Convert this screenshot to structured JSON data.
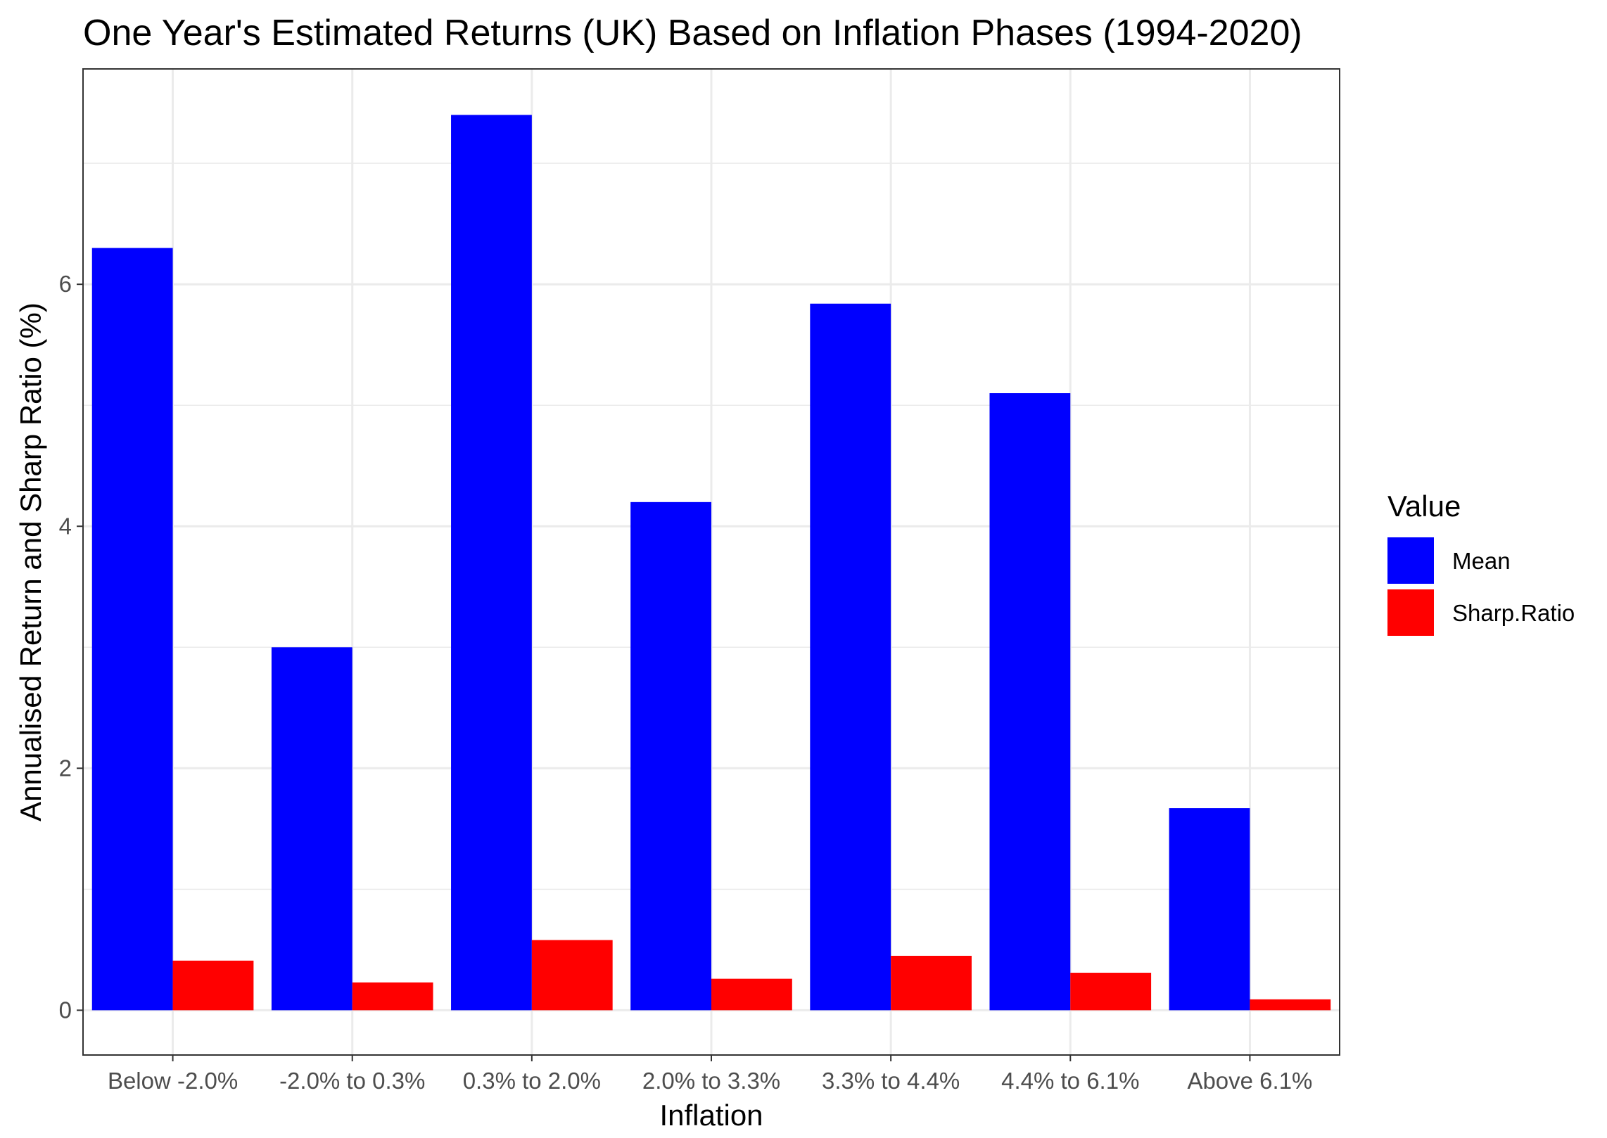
{
  "chart_data": {
    "type": "bar",
    "title": "One Year's Estimated Returns (UK) Based on Inflation Phases (1994-2020)",
    "xlabel": "Inflation",
    "ylabel": "Annualised Return and Sharp Ratio (%)",
    "categories": [
      "Below  -2.0%",
      "-2.0% to 0.3%",
      "0.3% to 2.0%",
      "2.0% to 3.3%",
      "3.3% to 4.4%",
      "4.4% to 6.1%",
      "Above 6.1%"
    ],
    "series": [
      {
        "name": "Mean",
        "color": "#0000FF",
        "values": [
          6.3,
          3.0,
          7.4,
          4.2,
          5.84,
          5.1,
          1.67
        ]
      },
      {
        "name": "Sharp.Ratio",
        "color": "#FF0000",
        "values": [
          0.41,
          0.23,
          0.58,
          0.26,
          0.45,
          0.31,
          0.09
        ]
      }
    ],
    "ylim": [
      -0.37,
      7.78
    ],
    "yticks": [
      0,
      2,
      4,
      6
    ],
    "ytick_labels": [
      "0",
      "2",
      "4",
      "6"
    ],
    "grid": true,
    "legend": {
      "title": "Value",
      "position": "right"
    },
    "colors": {
      "panel_border": "#333333",
      "grid": "#EBEBEB",
      "tick_label": "#4D4D4D"
    }
  }
}
